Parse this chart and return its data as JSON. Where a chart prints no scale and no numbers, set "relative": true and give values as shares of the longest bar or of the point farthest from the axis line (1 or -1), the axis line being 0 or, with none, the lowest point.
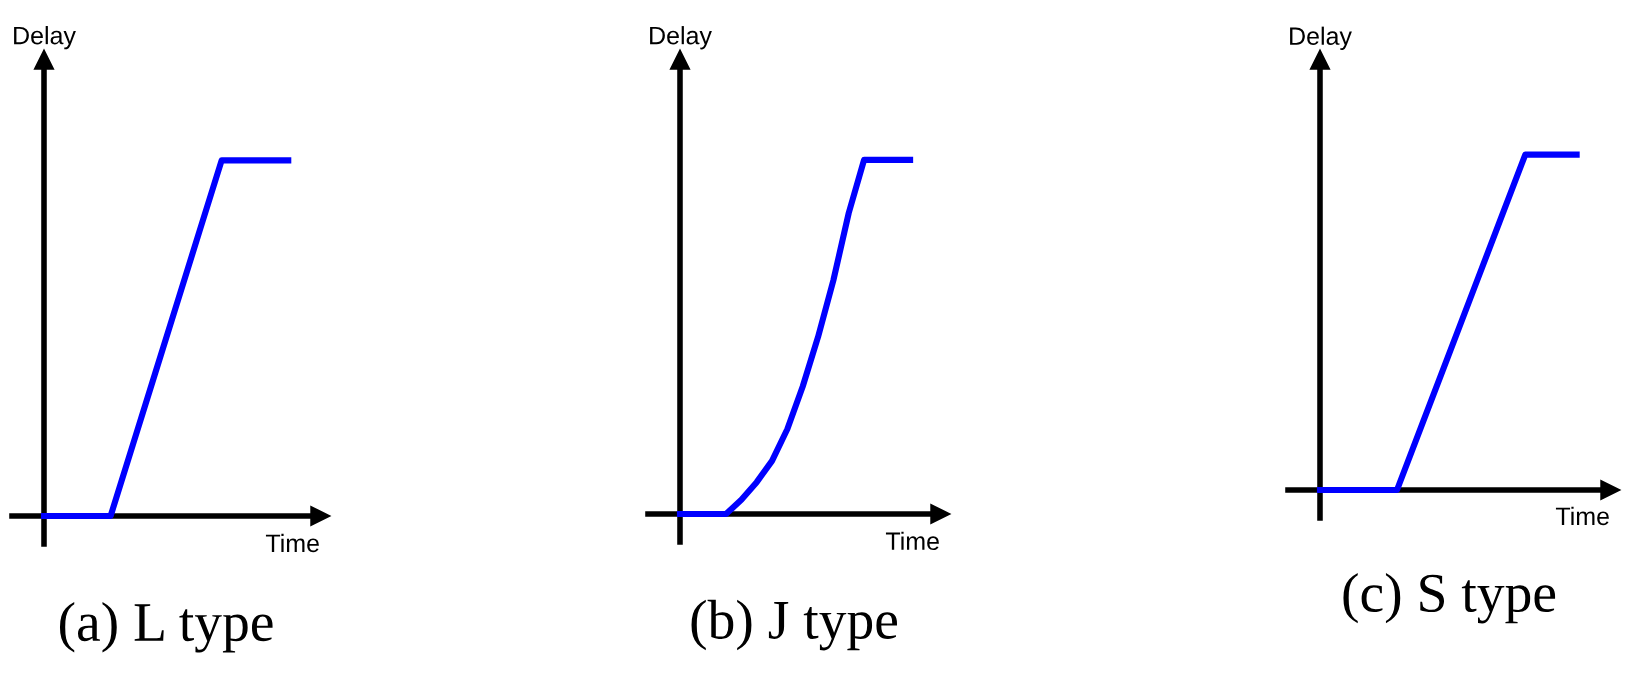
{
  "chart_data": [
    {
      "type": "line",
      "title": "(a) L type",
      "xlabel": "Time",
      "ylabel": "Delay",
      "relative": true,
      "categories": [
        null,
        null,
        null,
        null,
        null,
        null,
        null,
        null,
        null,
        null,
        null,
        null
      ],
      "series": [
        {
          "color": "#0000ff",
          "values": [
            0,
            0,
            0,
            0,
            0.2,
            0.4,
            0.6,
            0.8,
            1,
            1,
            1,
            1
          ]
        }
      ]
    },
    {
      "type": "line",
      "title": "(b) J type",
      "xlabel": "Time",
      "ylabel": "Delay",
      "relative": true,
      "categories": [
        null,
        null,
        null,
        null,
        null,
        null,
        null,
        null,
        null,
        null,
        null,
        null,
        null,
        null,
        null,
        null
      ],
      "series": [
        {
          "color": "#0000ff",
          "values": [
            0,
            0,
            0,
            0,
            0.04,
            0.09,
            0.15,
            0.24,
            0.36,
            0.5,
            0.66,
            0.85,
            1,
            1,
            1,
            1
          ]
        }
      ]
    },
    {
      "type": "line",
      "title": "(c) S type",
      "xlabel": "Time",
      "ylabel": "Delay",
      "relative": true,
      "categories": [
        null,
        null,
        null,
        null,
        null,
        null,
        null,
        null,
        null,
        null,
        null
      ],
      "series": [
        {
          "color": "#0000ff",
          "values": [
            0,
            0,
            0,
            0,
            0.2,
            0.4,
            0.6,
            0.8,
            1,
            1,
            1
          ]
        }
      ]
    }
  ]
}
